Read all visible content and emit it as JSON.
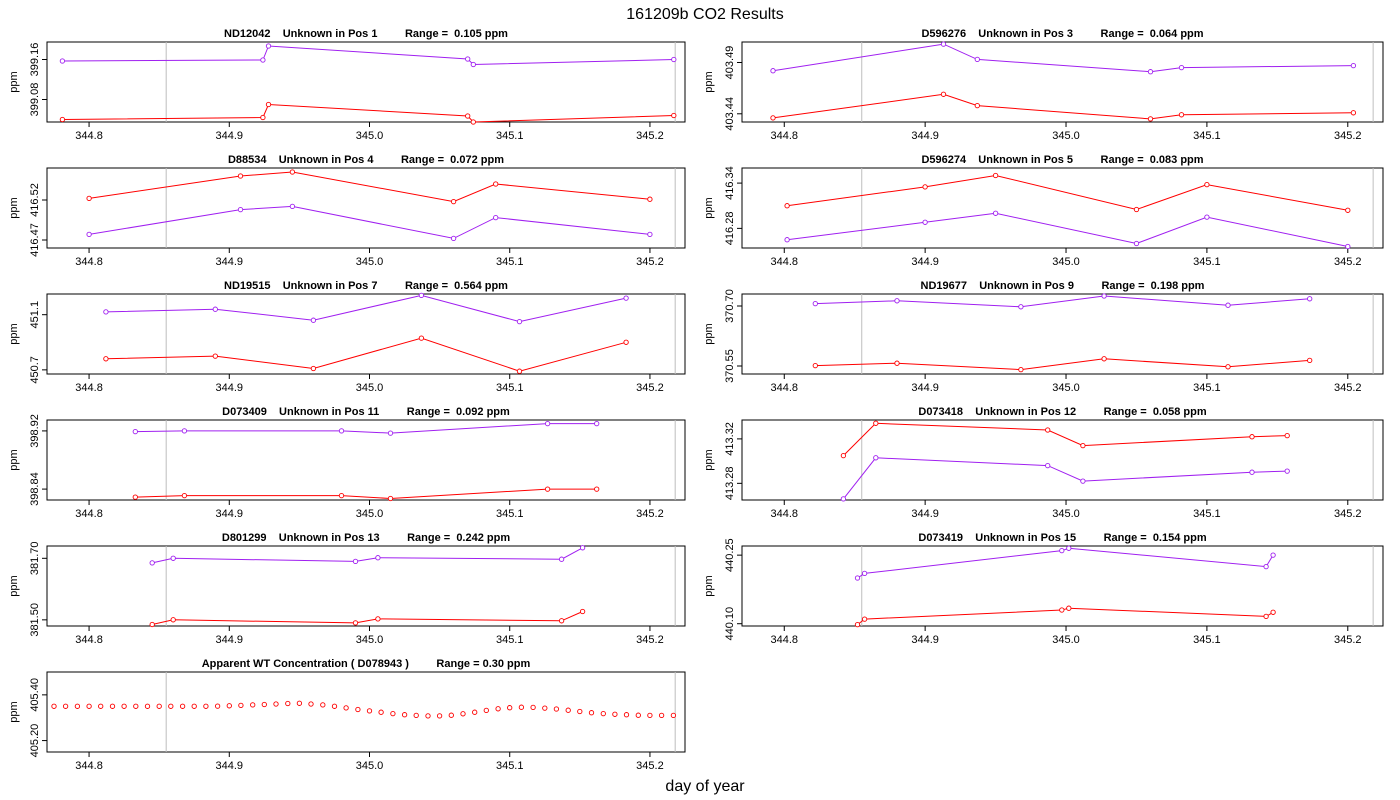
{
  "figure": {
    "title": "161209b  CO2 Results",
    "xlabel": "day of year"
  },
  "colors": {
    "red": "#ff0000",
    "purple": "#a020f0",
    "axis": "#000000",
    "vline": "#bebebe"
  },
  "chart_data": [
    {
      "type": "line",
      "title": "ND12042    Unknown in Pos 1         Range =  0.105 ppm",
      "ylabel": "ppm",
      "xlim": [
        344.77,
        345.225
      ],
      "ylim": [
        399.035,
        399.195
      ],
      "xticks": [
        "344.8",
        "344.9",
        "345.0",
        "345.1",
        "345.2"
      ],
      "yticks": [
        "399.08",
        "399.16"
      ],
      "vlines": [
        344.855,
        345.218
      ],
      "series": [
        {
          "name": "upper",
          "color": "purple",
          "x": [
            344.781,
            344.924,
            344.928,
            345.07,
            345.074,
            345.217
          ],
          "y": [
            399.157,
            399.159,
            399.187,
            399.161,
            399.15,
            399.16
          ]
        },
        {
          "name": "lower",
          "color": "red",
          "x": [
            344.781,
            344.924,
            344.928,
            345.07,
            345.074,
            345.217
          ],
          "y": [
            399.04,
            399.044,
            399.07,
            399.047,
            399.035,
            399.048
          ]
        }
      ]
    },
    {
      "type": "line",
      "title": "D596276    Unknown in Pos 3         Range =  0.064 ppm",
      "ylabel": "ppm",
      "xlim": [
        344.77,
        345.225
      ],
      "ylim": [
        403.432,
        403.51
      ],
      "xticks": [
        "344.8",
        "344.9",
        "345.0",
        "345.1",
        "345.2"
      ],
      "yticks": [
        "403.44",
        "403.49"
      ],
      "vlines": [
        344.855,
        345.218
      ],
      "series": [
        {
          "name": "upper",
          "color": "purple",
          "x": [
            344.792,
            344.913,
            344.937,
            345.06,
            345.082,
            345.204
          ],
          "y": [
            403.482,
            403.508,
            403.493,
            403.481,
            403.485,
            403.487
          ]
        },
        {
          "name": "lower",
          "color": "red",
          "x": [
            344.792,
            344.913,
            344.937,
            345.06,
            345.082,
            345.204
          ],
          "y": [
            403.436,
            403.459,
            403.448,
            403.435,
            403.439,
            403.441
          ]
        }
      ]
    },
    {
      "type": "line",
      "title": "D88534    Unknown in Pos 4         Range =  0.072 ppm",
      "ylabel": "ppm",
      "xlim": [
        344.77,
        345.225
      ],
      "ylim": [
        416.46,
        416.56
      ],
      "xticks": [
        "344.8",
        "344.9",
        "345.0",
        "345.1",
        "345.2"
      ],
      "yticks": [
        "416.47",
        "416.52"
      ],
      "vlines": [
        344.855,
        345.218
      ],
      "series": [
        {
          "name": "upper",
          "color": "red",
          "x": [
            344.8,
            344.908,
            344.945,
            345.06,
            345.09,
            345.2
          ],
          "y": [
            416.522,
            416.55,
            416.555,
            416.518,
            416.54,
            416.521
          ]
        },
        {
          "name": "lower",
          "color": "purple",
          "x": [
            344.8,
            344.908,
            344.945,
            345.06,
            345.09,
            345.2
          ],
          "y": [
            416.477,
            416.508,
            416.512,
            416.472,
            416.498,
            416.477
          ]
        }
      ]
    },
    {
      "type": "line",
      "title": "D596274    Unknown in Pos 5         Range =  0.083 ppm",
      "ylabel": "ppm",
      "xlim": [
        344.77,
        345.225
      ],
      "ylim": [
        416.254,
        416.36
      ],
      "xticks": [
        "344.8",
        "344.9",
        "345.0",
        "345.1",
        "345.2"
      ],
      "yticks": [
        "416.28",
        "416.34"
      ],
      "vlines": [
        344.855,
        345.218
      ],
      "series": [
        {
          "name": "upper",
          "color": "red",
          "x": [
            344.802,
            344.9,
            344.95,
            345.05,
            345.1,
            345.2
          ],
          "y": [
            416.31,
            416.335,
            416.35,
            416.305,
            416.338,
            416.304
          ]
        },
        {
          "name": "lower",
          "color": "purple",
          "x": [
            344.802,
            344.9,
            344.95,
            345.05,
            345.1,
            345.2
          ],
          "y": [
            416.265,
            416.288,
            416.3,
            416.26,
            416.295,
            416.256
          ]
        }
      ]
    },
    {
      "type": "line",
      "title": "ND19515    Unknown in Pos 7         Range =  0.564 ppm",
      "ylabel": "ppm",
      "xlim": [
        344.77,
        345.225
      ],
      "ylim": [
        450.67,
        451.25
      ],
      "xticks": [
        "344.8",
        "344.9",
        "345.0",
        "345.1",
        "345.2"
      ],
      "yticks": [
        "450.7",
        "451.1"
      ],
      "vlines": [
        344.855,
        345.218
      ],
      "series": [
        {
          "name": "upper",
          "color": "purple",
          "x": [
            344.812,
            344.89,
            344.96,
            345.037,
            345.107,
            345.183
          ],
          "y": [
            451.12,
            451.14,
            451.06,
            451.24,
            451.05,
            451.22
          ]
        },
        {
          "name": "lower",
          "color": "red",
          "x": [
            344.812,
            344.89,
            344.96,
            345.037,
            345.107,
            345.183
          ],
          "y": [
            450.78,
            450.8,
            450.71,
            450.93,
            450.69,
            450.9
          ]
        }
      ]
    },
    {
      "type": "line",
      "title": "ND19677    Unknown in Pos 9         Range =  0.198 ppm",
      "ylabel": "ppm",
      "xlim": [
        344.77,
        345.225
      ],
      "ylim": [
        370.53,
        370.73
      ],
      "xticks": [
        "344.8",
        "344.9",
        "345.0",
        "345.1",
        "345.2"
      ],
      "yticks": [
        "370.55",
        "370.70"
      ],
      "vlines": [
        344.855,
        345.218
      ],
      "series": [
        {
          "name": "upper",
          "color": "purple",
          "x": [
            344.822,
            344.88,
            344.968,
            345.027,
            345.115,
            345.173
          ],
          "y": [
            370.706,
            370.713,
            370.698,
            370.725,
            370.702,
            370.718
          ]
        },
        {
          "name": "lower",
          "color": "red",
          "x": [
            344.822,
            344.88,
            344.968,
            345.027,
            345.115,
            345.173
          ],
          "y": [
            370.551,
            370.557,
            370.541,
            370.568,
            370.548,
            370.564
          ]
        }
      ]
    },
    {
      "type": "line",
      "title": "D073409    Unknown in Pos 11         Range =  0.092 ppm",
      "ylabel": "ppm",
      "xlim": [
        344.77,
        345.225
      ],
      "ylim": [
        398.825,
        398.935
      ],
      "xticks": [
        "344.8",
        "344.9",
        "345.0",
        "345.1",
        "345.2"
      ],
      "yticks": [
        "398.84",
        "398.92"
      ],
      "vlines": [
        344.855,
        345.218
      ],
      "series": [
        {
          "name": "upper",
          "color": "purple",
          "x": [
            344.833,
            344.868,
            344.98,
            345.015,
            345.127,
            345.162
          ],
          "y": [
            398.919,
            398.92,
            398.92,
            398.917,
            398.93,
            398.93
          ]
        },
        {
          "name": "lower",
          "color": "red",
          "x": [
            344.833,
            344.868,
            344.98,
            345.015,
            345.127,
            345.162
          ],
          "y": [
            398.829,
            398.831,
            398.831,
            398.827,
            398.84,
            398.84
          ]
        }
      ]
    },
    {
      "type": "line",
      "title": "D073418    Unknown in Pos 12         Range =  0.058 ppm",
      "ylabel": "ppm",
      "xlim": [
        344.77,
        345.225
      ],
      "ylim": [
        413.265,
        413.337
      ],
      "xticks": [
        "344.8",
        "344.9",
        "345.0",
        "345.1",
        "345.2"
      ],
      "yticks": [
        "413.28",
        "413.32"
      ],
      "vlines": [
        344.855,
        345.218
      ],
      "series": [
        {
          "name": "upper",
          "color": "red",
          "x": [
            344.842,
            344.865,
            344.987,
            345.012,
            345.132,
            345.157
          ],
          "y": [
            413.305,
            413.334,
            413.328,
            413.314,
            413.322,
            413.323
          ]
        },
        {
          "name": "lower",
          "color": "purple",
          "x": [
            344.842,
            344.865,
            344.987,
            345.012,
            345.132,
            345.157
          ],
          "y": [
            413.266,
            413.303,
            413.296,
            413.282,
            413.29,
            413.291
          ]
        }
      ]
    },
    {
      "type": "line",
      "title": "D801299    Unknown in Pos 13         Range =  0.242 ppm",
      "ylabel": "ppm",
      "xlim": [
        344.77,
        345.225
      ],
      "ylim": [
        381.48,
        381.74
      ],
      "xticks": [
        "344.8",
        "344.9",
        "345.0",
        "345.1",
        "345.2"
      ],
      "yticks": [
        "381.50",
        "381.70"
      ],
      "vlines": [
        344.855,
        345.218
      ],
      "series": [
        {
          "name": "upper",
          "color": "purple",
          "x": [
            344.845,
            344.86,
            344.99,
            345.006,
            345.137,
            345.152
          ],
          "y": [
            381.685,
            381.7,
            381.69,
            381.702,
            381.697,
            381.734
          ]
        },
        {
          "name": "lower",
          "color": "red",
          "x": [
            344.845,
            344.86,
            344.99,
            345.006,
            345.137,
            345.152
          ],
          "y": [
            381.485,
            381.5,
            381.49,
            381.503,
            381.497,
            381.527
          ]
        }
      ]
    },
    {
      "type": "line",
      "title": "D073419    Unknown in Pos 15         Range =  0.154 ppm",
      "ylabel": "ppm",
      "xlim": [
        344.77,
        345.225
      ],
      "ylim": [
        440.095,
        440.27
      ],
      "xticks": [
        "344.8",
        "344.9",
        "345.0",
        "345.1",
        "345.2"
      ],
      "yticks": [
        "440.10",
        "440.25"
      ],
      "vlines": [
        344.855,
        345.218
      ],
      "series": [
        {
          "name": "upper",
          "color": "purple",
          "x": [
            344.852,
            344.857,
            344.997,
            345.002,
            345.142,
            345.147
          ],
          "y": [
            440.2,
            440.21,
            440.26,
            440.265,
            440.225,
            440.25
          ]
        },
        {
          "name": "lower",
          "color": "red",
          "x": [
            344.852,
            344.857,
            344.997,
            345.002,
            345.142,
            345.147
          ],
          "y": [
            440.098,
            440.11,
            440.13,
            440.134,
            440.116,
            440.125
          ]
        }
      ]
    },
    {
      "type": "scatter",
      "title": "Apparent WT Concentration ( D078943 )         Range = 0.30 ppm",
      "ylabel": "ppm",
      "xlim": [
        344.77,
        345.225
      ],
      "ylim": [
        405.15,
        405.5
      ],
      "xticks": [
        "344.8",
        "344.9",
        "345.0",
        "345.1",
        "345.2"
      ],
      "yticks": [
        "405.20",
        "405.40"
      ],
      "vlines": [
        344.855,
        345.218
      ],
      "series": [
        {
          "name": "WT",
          "color": "red",
          "x": [
            344.775,
            344.7833,
            344.7917,
            344.8,
            344.8083,
            344.8167,
            344.825,
            344.8333,
            344.8417,
            344.85,
            344.8583,
            344.8667,
            344.875,
            344.8833,
            344.8917,
            344.9,
            344.9083,
            344.9167,
            344.925,
            344.9333,
            344.9417,
            344.95,
            344.9583,
            344.9667,
            344.975,
            344.9833,
            344.9917,
            345.0,
            345.0083,
            345.0167,
            345.025,
            345.0333,
            345.0417,
            345.05,
            345.0583,
            345.0667,
            345.075,
            345.0833,
            345.0917,
            345.1,
            345.1083,
            345.1167,
            345.125,
            345.1333,
            345.1417,
            345.15,
            345.1583,
            345.1667,
            345.175,
            345.1833,
            345.1917,
            345.2,
            345.2083,
            345.2167
          ],
          "y": [
            405.35,
            405.35,
            405.35,
            405.35,
            405.35,
            405.35,
            405.35,
            405.35,
            405.35,
            405.35,
            405.35,
            405.35,
            405.35,
            405.35,
            405.351,
            405.352,
            405.354,
            405.356,
            405.358,
            405.36,
            405.362,
            405.363,
            405.36,
            405.356,
            405.35,
            405.343,
            405.336,
            405.33,
            405.324,
            405.318,
            405.313,
            405.31,
            405.308,
            405.308,
            405.311,
            405.317,
            405.324,
            405.332,
            405.339,
            405.344,
            405.346,
            405.345,
            405.342,
            405.338,
            405.333,
            405.327,
            405.322,
            405.318,
            405.315,
            405.313,
            405.311,
            405.31,
            405.31,
            405.31
          ]
        }
      ]
    }
  ]
}
